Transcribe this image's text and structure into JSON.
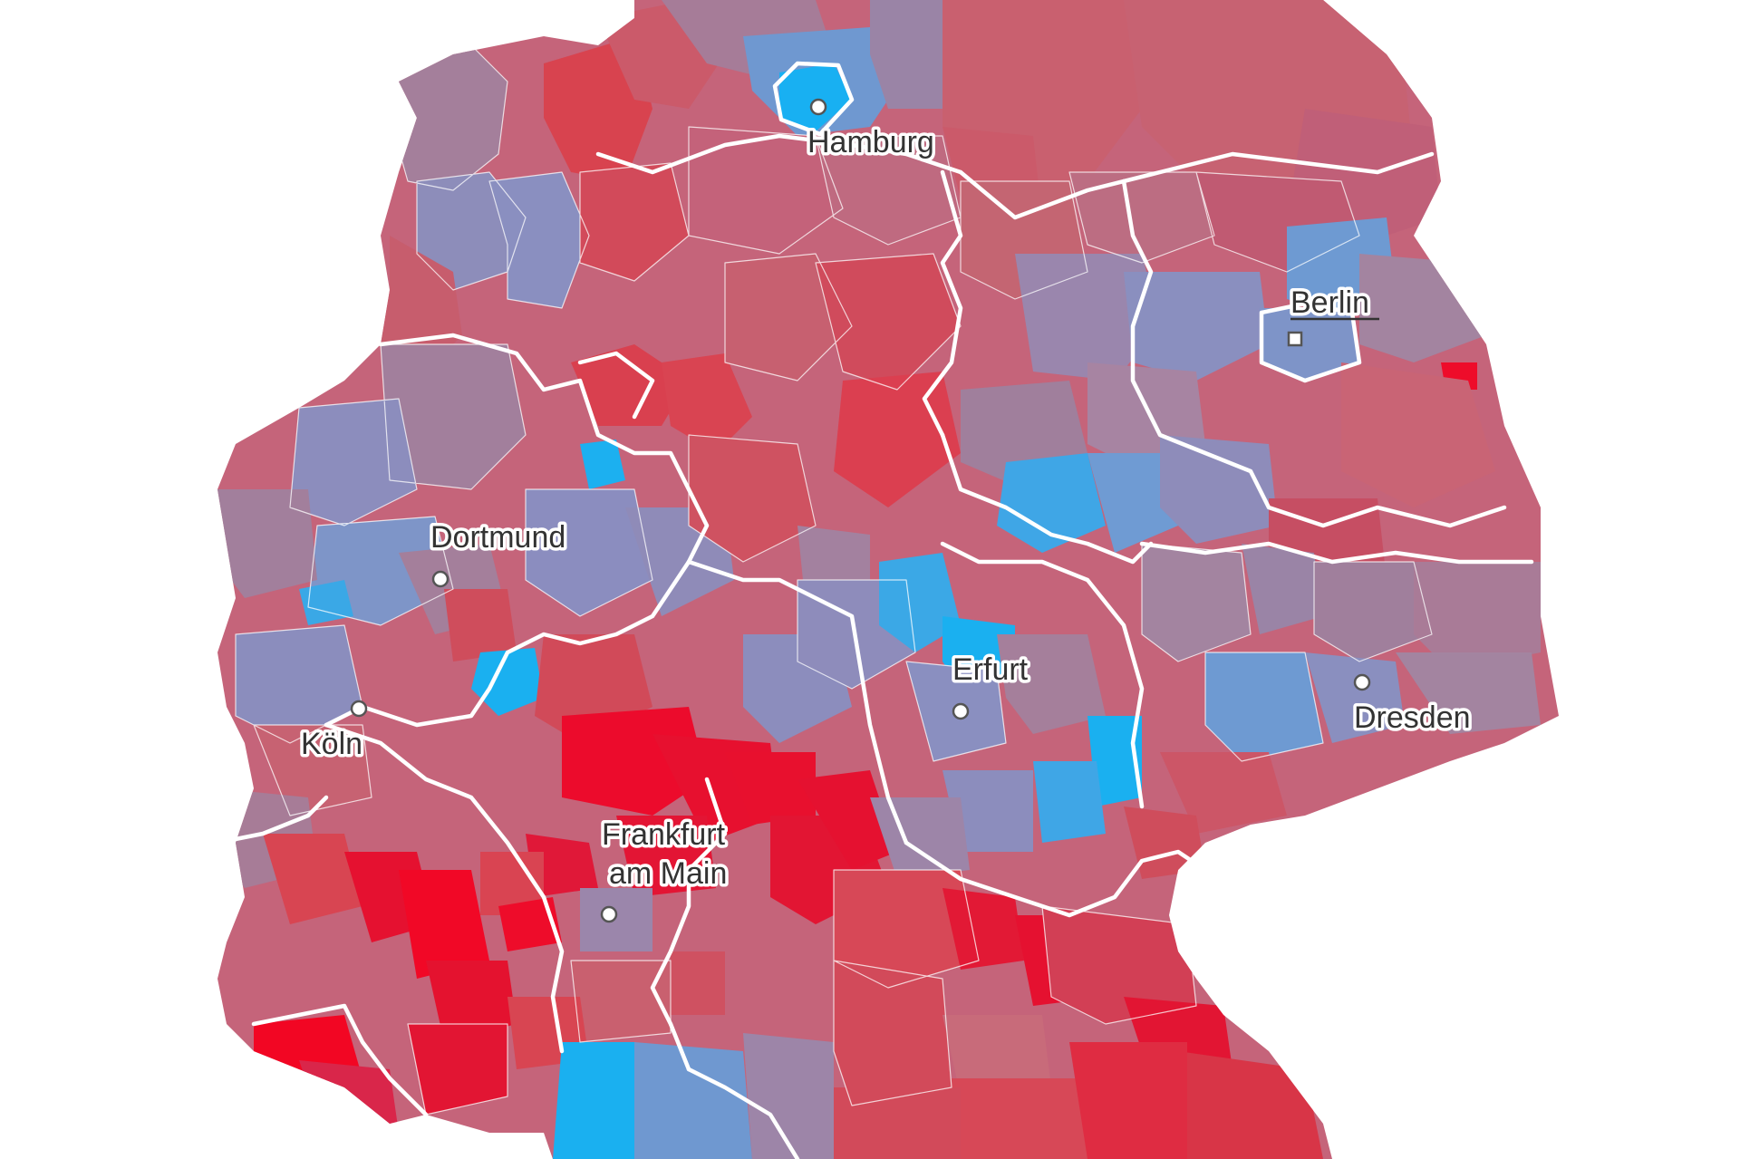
{
  "map": {
    "country": "",
    "palette": {
      "deep_red": "#ea0d2e",
      "red": "#d9404f",
      "rose": "#c9606f",
      "mauve": "#a37f9a",
      "lavender": "#8c8ebd",
      "steel_blue": "#6e9ad2",
      "sky_blue": "#3aa8e6",
      "bright_blue": "#1ab0f0",
      "state_border": "#ffffff",
      "label_text": "#333333"
    },
    "cities": [
      {
        "id": "hamburg",
        "name": "Hamburg",
        "marker": "circle",
        "underlined": false
      },
      {
        "id": "berlin",
        "name": "Berlin",
        "marker": "square",
        "underlined": true
      },
      {
        "id": "dortmund",
        "name": "Dortmund",
        "marker": "circle",
        "underlined": false
      },
      {
        "id": "erfurt",
        "name": "Erfurt",
        "marker": "circle",
        "underlined": false
      },
      {
        "id": "koeln",
        "name": "Köln",
        "marker": "circle",
        "underlined": false
      },
      {
        "id": "dresden",
        "name": "Dresden",
        "marker": "circle",
        "underlined": false
      },
      {
        "id": "frankfurt",
        "name": "Frankfurt am Main",
        "name_line1": "Frankfurt",
        "name_line2": "am Main",
        "marker": "circle",
        "underlined": false
      }
    ]
  }
}
